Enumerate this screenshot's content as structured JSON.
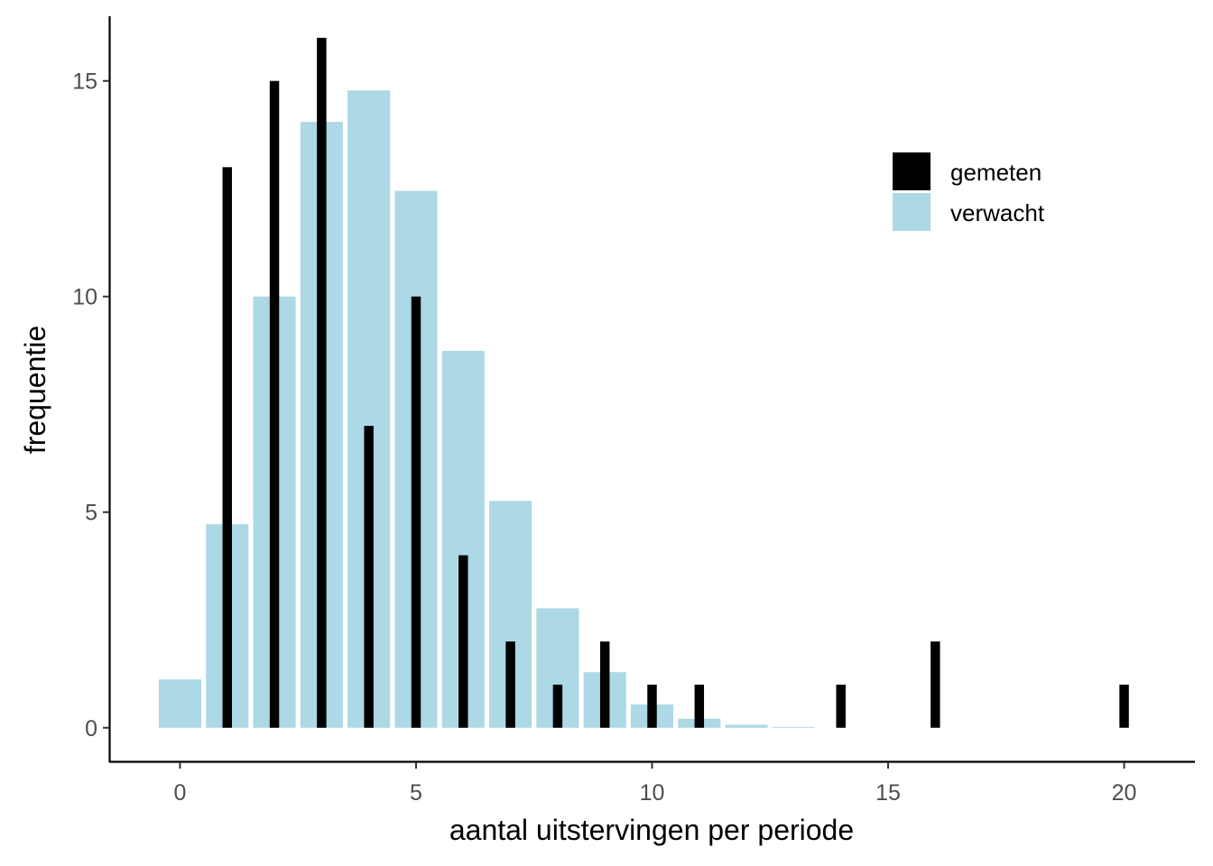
{
  "chart_data": {
    "type": "bar",
    "title": "",
    "xlabel": "aantal uitstervingen per periode",
    "ylabel": "frequentie",
    "xlim": [
      -1.5,
      21.5
    ],
    "ylim": [
      -0.8,
      16.5
    ],
    "x_ticks": [
      0,
      5,
      10,
      15,
      20
    ],
    "y_ticks": [
      0,
      5,
      10,
      15
    ],
    "grid": false,
    "legend_position": "top-right",
    "series": [
      {
        "name": "verwacht",
        "color": "#add8e6",
        "bar_width": 0.9,
        "x": [
          0,
          1,
          2,
          3,
          4,
          5,
          6,
          7,
          8,
          9,
          10,
          11,
          12,
          13
        ],
        "values": [
          1.12,
          4.72,
          10.0,
          14.05,
          14.78,
          12.45,
          8.74,
          5.26,
          2.77,
          1.29,
          0.54,
          0.21,
          0.07,
          0.02
        ]
      },
      {
        "name": "gemeten",
        "color": "#000000",
        "bar_width": 0.2,
        "x": [
          1,
          2,
          3,
          4,
          5,
          6,
          7,
          8,
          9,
          10,
          11,
          14,
          16,
          20
        ],
        "values": [
          13,
          15,
          16,
          7,
          10,
          4,
          2,
          1,
          2,
          1,
          1,
          1,
          2,
          1
        ]
      }
    ],
    "legend_order": [
      "gemeten",
      "verwacht"
    ]
  }
}
